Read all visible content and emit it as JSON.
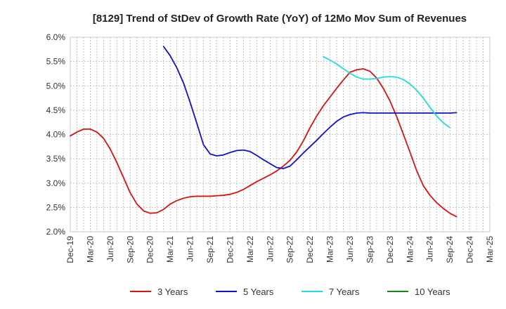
{
  "chart_data": {
    "type": "line",
    "title": "[8129]  Trend of StDev of Growth Rate (YoY) of 12Mo Mov Sum of Revenues",
    "xlabel": "",
    "ylabel": "",
    "ylim": [
      2.0,
      6.0
    ],
    "y_ticks": [
      "2.0%",
      "2.5%",
      "3.0%",
      "3.5%",
      "4.0%",
      "4.5%",
      "5.0%",
      "5.5%",
      "6.0%"
    ],
    "y_tick_values": [
      2.0,
      2.5,
      3.0,
      3.5,
      4.0,
      4.5,
      5.0,
      5.5,
      6.0
    ],
    "x_ticks": [
      "Dec-19",
      "Mar-20",
      "Jun-20",
      "Sep-20",
      "Dec-20",
      "Mar-21",
      "Jun-21",
      "Sep-21",
      "Dec-21",
      "Mar-22",
      "Jun-22",
      "Sep-22",
      "Dec-22",
      "Mar-23",
      "Jun-23",
      "Sep-23",
      "Dec-23",
      "Mar-24",
      "Jun-24",
      "Sep-24",
      "Dec-24",
      "Mar-25"
    ],
    "grid": true,
    "legend_position": "bottom",
    "series": [
      {
        "name": "3 Years",
        "color": "#dd1111",
        "start_index": 0,
        "values": [
          3.97,
          4.05,
          4.11,
          4.11,
          4.05,
          3.92,
          3.7,
          3.42,
          3.11,
          2.8,
          2.57,
          2.43,
          2.38,
          2.39,
          2.46,
          2.57,
          2.64,
          2.69,
          2.72,
          2.73,
          2.73,
          2.73,
          2.74,
          2.75,
          2.77,
          2.81,
          2.87,
          2.95,
          3.03,
          3.1,
          3.17,
          3.25,
          3.35,
          3.47,
          3.64,
          3.87,
          4.14,
          4.38,
          4.59,
          4.77,
          4.95,
          5.12,
          5.28,
          5.33,
          5.35,
          5.3,
          5.16,
          4.95,
          4.69,
          4.37,
          4.01,
          3.64,
          3.26,
          2.95,
          2.75,
          2.6,
          2.48,
          2.38,
          2.31
        ]
      },
      {
        "name": "5 Years",
        "color": "#1111cc",
        "start_index": 14,
        "values": [
          5.81,
          5.62,
          5.37,
          5.06,
          4.66,
          4.23,
          3.79,
          3.6,
          3.56,
          3.58,
          3.63,
          3.67,
          3.68,
          3.65,
          3.57,
          3.48,
          3.4,
          3.32,
          3.3,
          3.35,
          3.48,
          3.62,
          3.75,
          3.88,
          4.02,
          4.15,
          4.27,
          4.36,
          4.41,
          4.44,
          4.45,
          4.44,
          4.44,
          4.44,
          4.44,
          4.44,
          4.44,
          4.44,
          4.44,
          4.44,
          4.44,
          4.44,
          4.44,
          4.44,
          4.45
        ]
      },
      {
        "name": "7 Years",
        "color": "#22dddd",
        "start_index": 38,
        "values": [
          5.6,
          5.53,
          5.45,
          5.35,
          5.26,
          5.18,
          5.14,
          5.14,
          5.15,
          5.18,
          5.19,
          5.18,
          5.13,
          5.04,
          4.91,
          4.75,
          4.56,
          4.38,
          4.24,
          4.14
        ]
      },
      {
        "name": "10 Years",
        "color": "#118811",
        "start_index": 0,
        "values": []
      }
    ]
  }
}
